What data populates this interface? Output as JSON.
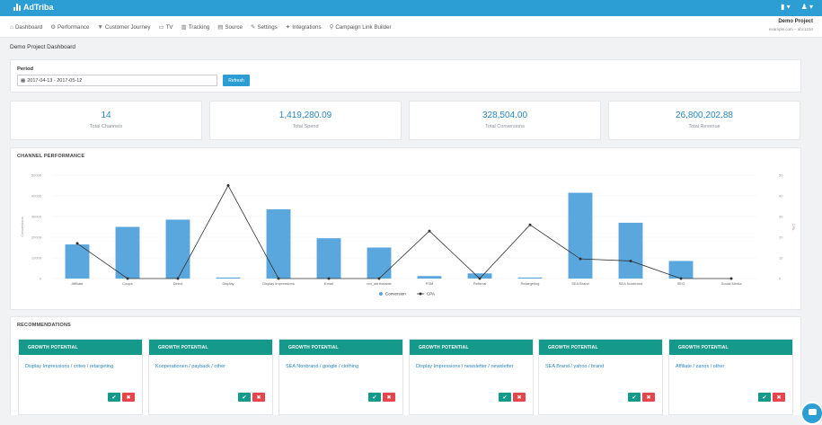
{
  "topbar": {
    "brand": "AdTriba",
    "user_menu": "▾",
    "apps_menu": "▾"
  },
  "nav": [
    {
      "icon": "⌂",
      "label": "Dashboard"
    },
    {
      "icon": "⚙",
      "label": "Performance"
    },
    {
      "icon": "▼",
      "label": "Customer Journey"
    },
    {
      "icon": "▭",
      "label": "TV"
    },
    {
      "icon": "▥",
      "label": "Tracking"
    },
    {
      "icon": "▤",
      "label": "Source"
    },
    {
      "icon": "✎",
      "label": "Settings"
    },
    {
      "icon": "✦",
      "label": "Integrations"
    },
    {
      "icon": "⚲",
      "label": "Campaign Link Builder"
    }
  ],
  "project": {
    "name": "Demo Project",
    "sub": "example.com – abc1234"
  },
  "page_title": "Demo Project Dashboard",
  "period": {
    "label": "Period",
    "value": "2017-04-13 - 2017-05-12",
    "refresh_label": "Refresh"
  },
  "stats": [
    {
      "value": "14",
      "label": "Total Channels"
    },
    {
      "value": "1,419,280.09",
      "label": "Total Spend"
    },
    {
      "value": "328,504.00",
      "label": "Total Conversions"
    },
    {
      "value": "26,800,202.88",
      "label": "Total Revenue"
    }
  ],
  "chart_title": "CHANNEL PERFORMANCE",
  "chart_data": {
    "type": "bar",
    "categories": [
      "Affiliate",
      "Coops",
      "Direct",
      "Display",
      "Display Impressions",
      "Email",
      "not_attributable",
      "PSM",
      "Referral",
      "Retargeting",
      "SEA Brand",
      "SEA Nonbrand",
      "SEO",
      "Social Media"
    ],
    "series": [
      {
        "name": "Conversion",
        "type": "bar",
        "axis": "left",
        "color": "#5aa7dd",
        "values": [
          16500,
          25000,
          28500,
          500,
          33500,
          19500,
          15000,
          1200,
          2500,
          500,
          41500,
          27000,
          8500,
          0
        ]
      },
      {
        "name": "CPA",
        "type": "line",
        "axis": "right",
        "color": "#333333",
        "values": [
          17,
          0,
          0,
          45,
          0,
          0,
          0,
          23,
          0,
          26,
          9.5,
          8.5,
          0,
          0
        ]
      }
    ],
    "ylim_left": [
      0,
      50000
    ],
    "ylim_right": [
      0,
      50
    ],
    "left_ticks": [
      "0",
      "10000",
      "20000",
      "30000",
      "40000",
      "50000"
    ],
    "right_ticks": [
      "0",
      "10",
      "20",
      "30",
      "40",
      "50"
    ],
    "ylabel_left": "Conversions",
    "ylabel_right": "CPA",
    "legend": "bottom"
  },
  "recommendations_title": "RECOMMENDATIONS",
  "recommendations": [
    {
      "head": "GROWTH POTENTIAL",
      "text": "Display Impressions / criteo / retargeting"
    },
    {
      "head": "GROWTH POTENTIAL",
      "text": "Kooperationen / payback / other"
    },
    {
      "head": "GROWTH POTENTIAL",
      "text": "SEA Nonbrand / google / clothing"
    },
    {
      "head": "GROWTH POTENTIAL",
      "text": "Display Impressions / newsletter / newsletter"
    },
    {
      "head": "GROWTH POTENTIAL",
      "text": "SEA Brand / yahoo / brand"
    },
    {
      "head": "GROWTH POTENTIAL",
      "text": "Affiliate / zanox / other"
    }
  ],
  "reco_accept": "✔",
  "reco_reject": "✖"
}
